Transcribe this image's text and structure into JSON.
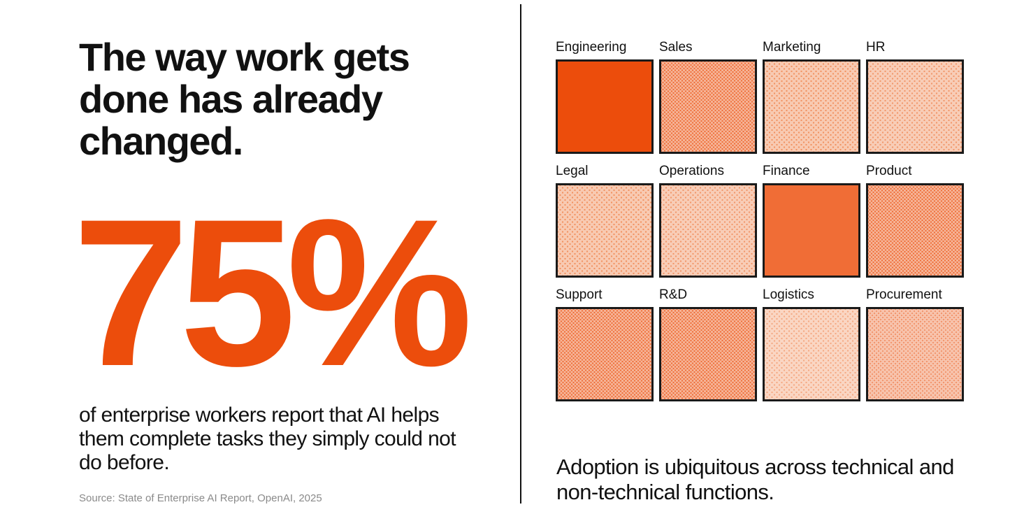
{
  "left_panel": {
    "headline": "The way work gets done has already changed.",
    "stat_value": "75%",
    "stat_description": "of enterprise workers report that AI helps them complete tasks they simply could not do before.",
    "source": "Source: State of Enterprise AI Report, OpenAI, 2025"
  },
  "right_panel": {
    "functions": [
      {
        "label": "Engineering",
        "pattern": "solid",
        "color": "#ec4d0c"
      },
      {
        "label": "Sales",
        "pattern": "dense",
        "color": "#ec5a1c"
      },
      {
        "label": "Marketing",
        "pattern": "light",
        "color": "#f08a55"
      },
      {
        "label": "HR",
        "pattern": "light",
        "color": "#f09060"
      },
      {
        "label": "Legal",
        "pattern": "light",
        "color": "#f08a55"
      },
      {
        "label": "Operations",
        "pattern": "light",
        "color": "#f09060"
      },
      {
        "label": "Finance",
        "pattern": "solid",
        "color": "#f06d36"
      },
      {
        "label": "Product",
        "pattern": "dense",
        "color": "#ec5a1c"
      },
      {
        "label": "Support",
        "pattern": "dense",
        "color": "#ec5a1c"
      },
      {
        "label": "R&D",
        "pattern": "dense",
        "color": "#ec5a1c"
      },
      {
        "label": "Logistics",
        "pattern": "light",
        "color": "#f3a37a"
      },
      {
        "label": "Procurement",
        "pattern": "medium",
        "color": "#ee7540"
      }
    ],
    "caption": "Adoption is ubiquitous across technical and non-technical functions."
  },
  "colors": {
    "accent": "#ec4d0c",
    "text": "#111111",
    "muted": "#8a8a8a",
    "border": "#1a1a1a"
  }
}
